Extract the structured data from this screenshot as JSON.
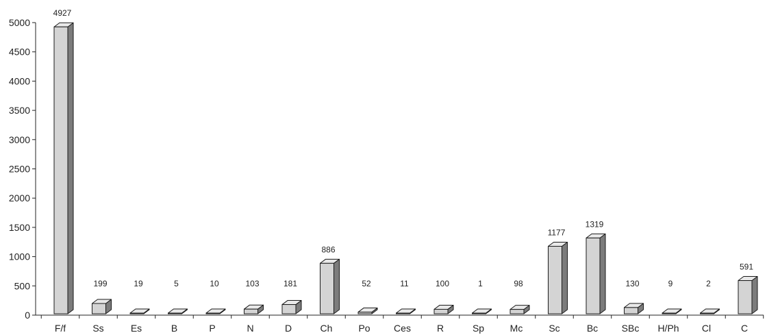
{
  "chart_data": {
    "type": "bar",
    "categories": [
      "F/f",
      "Ss",
      "Es",
      "B",
      "P",
      "N",
      "D",
      "Ch",
      "Po",
      "Ces",
      "R",
      "Sp",
      "Mc",
      "Sc",
      "Bc",
      "SBc",
      "H/Ph",
      "Cl",
      "C"
    ],
    "values": [
      4927,
      199,
      19,
      5,
      10,
      103,
      181,
      886,
      52,
      11,
      100,
      1,
      98,
      1177,
      1319,
      130,
      9,
      2,
      591
    ],
    "data_labels": [
      "4927",
      "199",
      "19",
      "5",
      "10",
      "103",
      "181",
      "886",
      "52",
      "11",
      "100",
      "1",
      "98",
      "1177",
      "1319",
      "130",
      "9",
      "2",
      "591"
    ],
    "y_ticks": [
      "0",
      "500",
      "1000",
      "1500",
      "2000",
      "2500",
      "3000",
      "3500",
      "4000",
      "4500",
      "5000"
    ],
    "ylim": [
      0,
      5000
    ],
    "title": "",
    "xlabel": "",
    "ylabel": "",
    "grid": false,
    "legend": false,
    "colors": {
      "bar_front": "#d4d4d4",
      "bar_top": "#e9e9e9",
      "bar_side": "#7c7c7c",
      "bar_outline": "#1a1a1a",
      "axis": "#222222"
    }
  }
}
